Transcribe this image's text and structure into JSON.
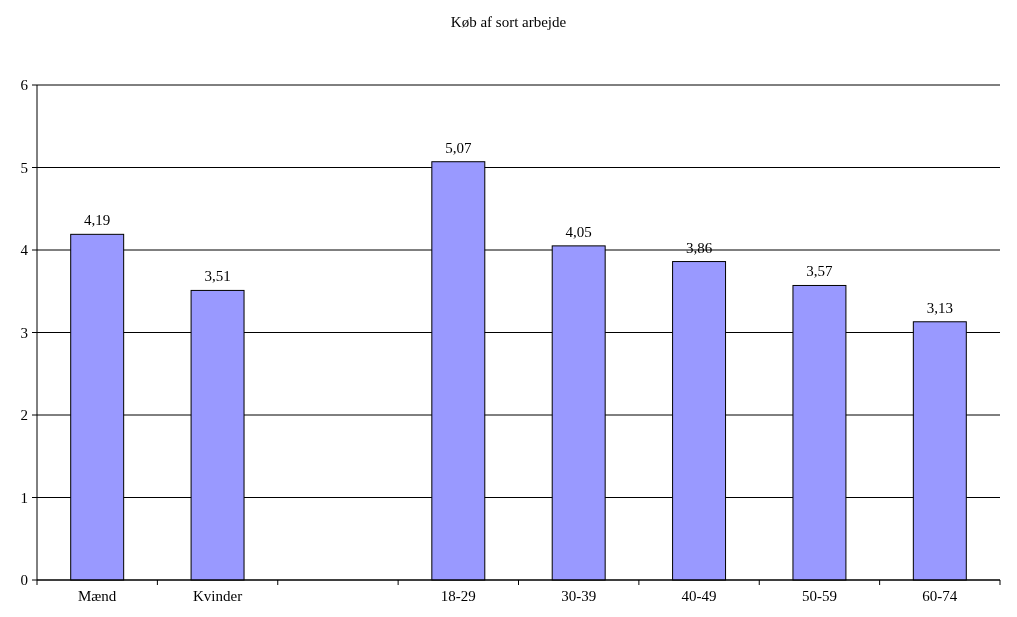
{
  "chart_data": {
    "type": "bar",
    "title": "Køb af sort arbejde",
    "categories": [
      "Mænd",
      "Kvinder",
      null,
      "18-29",
      "30-39",
      "40-49",
      "50-59",
      "60-74"
    ],
    "values": [
      4.19,
      3.51,
      null,
      5.07,
      4.05,
      3.86,
      3.57,
      3.13
    ],
    "value_labels": [
      "4,19",
      "3,51",
      null,
      "5,07",
      "4,05",
      "3,86",
      "3,57",
      "3,13"
    ],
    "color": "#9999ff",
    "ylim": [
      0,
      6
    ],
    "yticks": [
      0,
      1,
      2,
      3,
      4,
      5,
      6
    ],
    "grid": "y"
  }
}
